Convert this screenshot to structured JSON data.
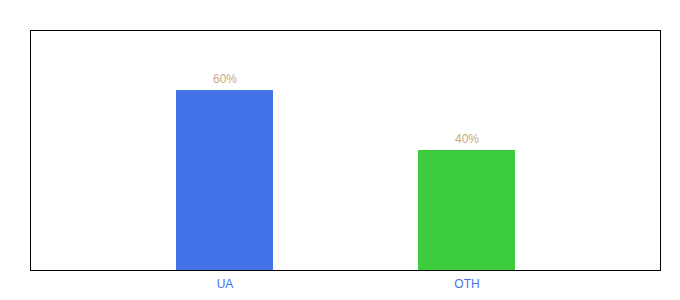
{
  "chart_data": {
    "type": "bar",
    "categories": [
      "UA",
      "OTH"
    ],
    "values": [
      60,
      40
    ],
    "colors": [
      "#4472e8",
      "#3dcc3d"
    ],
    "ylim": [
      0,
      80
    ],
    "data_labels": true,
    "value_labels": [
      "60%",
      "40%"
    ],
    "tick_labels": "x"
  }
}
